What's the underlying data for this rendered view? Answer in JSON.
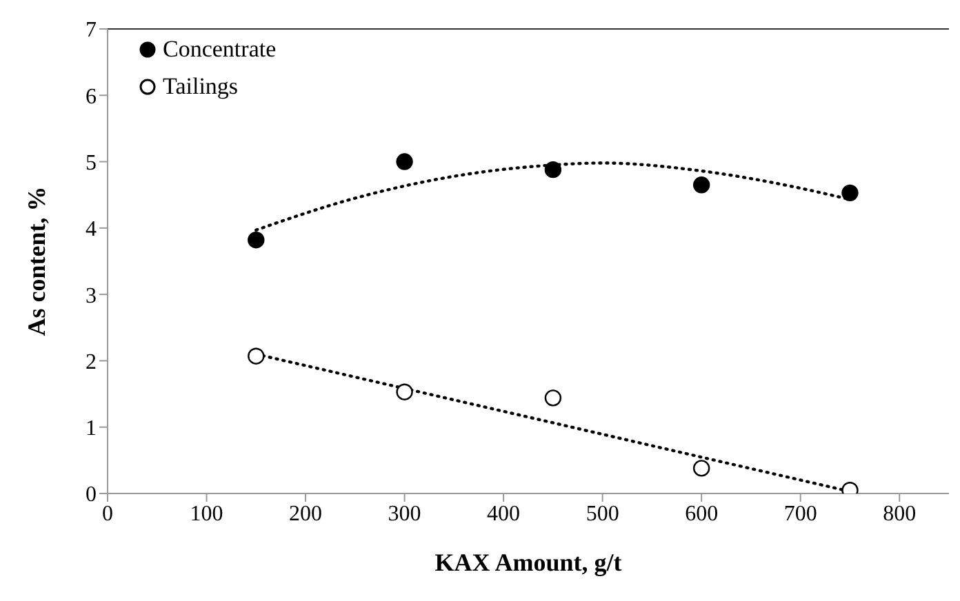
{
  "chart_data": {
    "type": "scatter",
    "xlabel": "KAX Amount, g/t",
    "ylabel": "As content, %",
    "x": [
      150,
      300,
      450,
      600,
      750
    ],
    "series": [
      {
        "name": "Concentrate",
        "color": "#000000",
        "values": [
          3.82,
          5.0,
          4.88,
          4.65,
          4.53
        ],
        "marker": "circle"
      },
      {
        "name": "Tailings",
        "color": "#ffffff",
        "values": [
          2.07,
          1.53,
          1.44,
          0.38,
          0.05
        ],
        "marker": "circle"
      },
      {
        "type": "line",
        "color": "#000000",
        "x": [
          150,
          250,
          350,
          450,
          500,
          600,
          700,
          750
        ],
        "values": [
          3.97,
          4.45,
          4.78,
          4.95,
          4.98,
          4.86,
          4.6,
          4.43
        ],
        "line_style": "dotted",
        "marker": "none"
      },
      {
        "type": "line",
        "color": "#000000",
        "x": [
          150,
          750
        ],
        "values": [
          2.1,
          0.03
        ],
        "line_style": "dotted",
        "marker": "none"
      }
    ],
    "xlim": [
      0,
      850
    ],
    "xticks": [
      0,
      100,
      200,
      300,
      400,
      500,
      600,
      700,
      800
    ],
    "ylim": [
      0,
      7
    ],
    "yticks": [
      0,
      1,
      2,
      3,
      4,
      5,
      6,
      7
    ],
    "grid": false,
    "legend": "top left"
  }
}
